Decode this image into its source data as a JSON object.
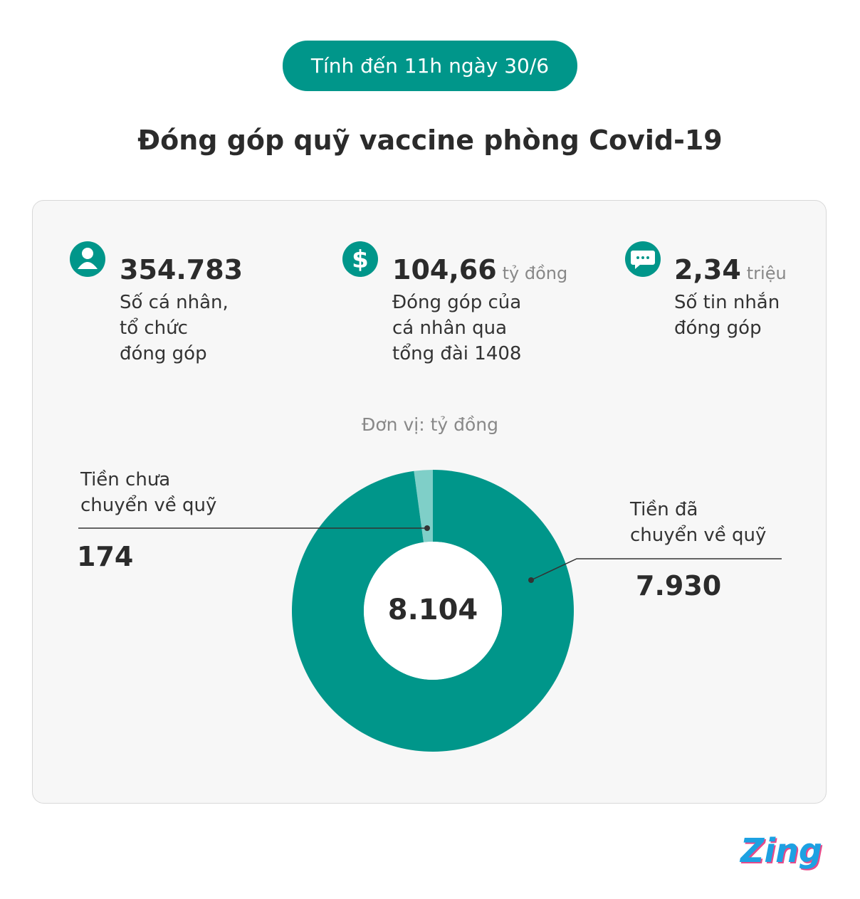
{
  "header": {
    "badge": "Tính đến 11h ngày 30/6",
    "title": "Đóng góp quỹ vaccine phòng Covid-19"
  },
  "stats": [
    {
      "value": "354.783",
      "label": "Số cá nhân,\ntổ chức\nđóng góp"
    },
    {
      "value": "104,66",
      "unit": "tỷ đồng",
      "label": "Đóng góp của\ncá nhân qua\ntổng đài 1408"
    },
    {
      "value": "2,34",
      "unit": "triệu",
      "label": "Số tin nhắn\nđóng góp"
    }
  ],
  "chart_data": {
    "type": "pie",
    "donut": true,
    "subtitle": "Đơn vị: tỷ đồng",
    "categories": [
      "Tiền chưa\nchuyển về quỹ",
      "Tiền đã\nchuyển về quỹ"
    ],
    "values": [
      174,
      7930
    ],
    "value_labels": [
      "174",
      "7.930"
    ],
    "colors": [
      "#7fcfc8",
      "#00968a"
    ],
    "center_label": "8.104"
  },
  "brand": "Zing"
}
